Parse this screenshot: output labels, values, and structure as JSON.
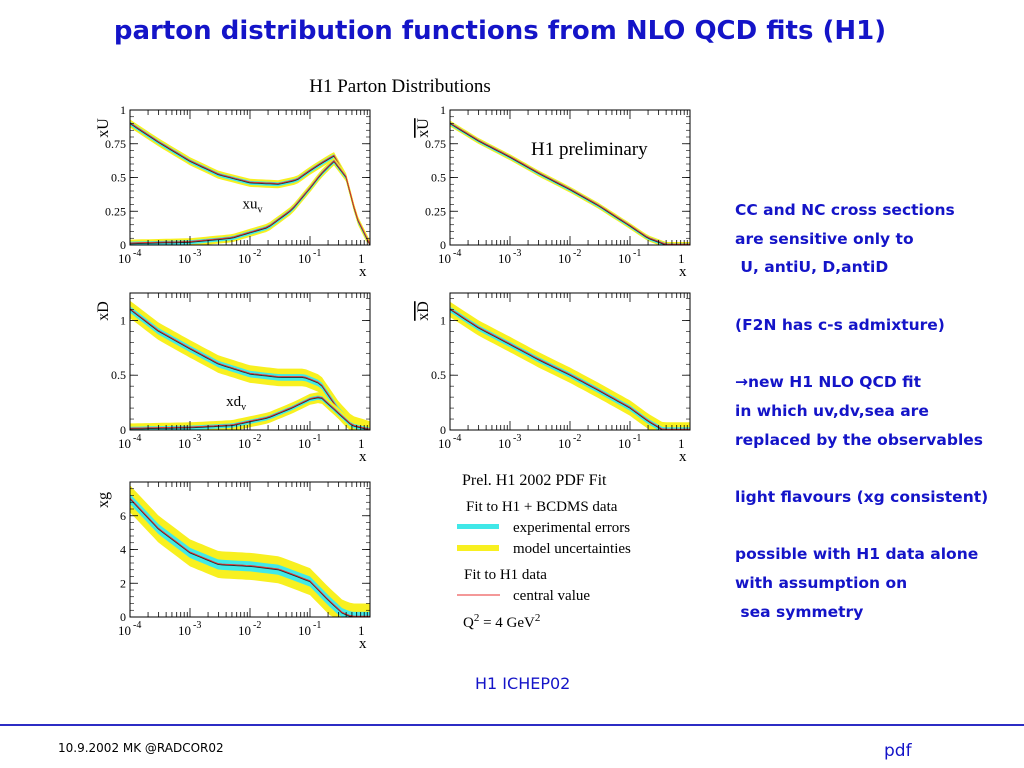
{
  "slide": {
    "title": "parton distribution functions from NLO QCD fits (H1)",
    "caption": "H1 ICHEP02",
    "footer_left": "10.9.2002 MK @RADCOR02",
    "footer_right": "pdf",
    "accent_color": "#1414c8"
  },
  "notes": [
    "CC and NC cross sections",
    "are sensitive only to",
    " U, antiU, D,antiD",
    "",
    "(F2N has c-s admixture)",
    "",
    "→new H1 NLO QCD fit",
    "in which uv,dv,sea are",
    "replaced by the observables",
    "",
    "light flavours (xg consistent)",
    "",
    "possible with H1 data alone",
    "with assumption on",
    " sea symmetry"
  ],
  "figure": {
    "title": "H1 Parton Distributions",
    "preliminary": "H1 preliminary",
    "colors": {
      "experimental": "#40e8e8",
      "model": "#f8f020",
      "central": "#e83030"
    },
    "legend": {
      "header": "Prel. H1 2002 PDF Fit",
      "fit1": "Fit to H1 + BCDMS data",
      "exp": "experimental errors",
      "model": "model uncertainties",
      "fit2": "Fit to H1 data",
      "central": "central value",
      "q2_a": "Q",
      "q2_sup": "2",
      "q2_b": " = 4 GeV",
      "q2_sup2": "2"
    }
  },
  "chart_data": [
    {
      "type": "area",
      "panel": "xU",
      "ylabel": "xU",
      "xlabel": "x",
      "xscale": "log",
      "xlim": [
        0.0001,
        1
      ],
      "ylim": [
        0,
        1
      ],
      "yticks": [
        "0",
        "0.25",
        "0.5",
        "0.75",
        "1"
      ],
      "xticks": [
        {
          "base": "10",
          "exp": "-4"
        },
        {
          "base": "10",
          "exp": "-3"
        },
        {
          "base": "10",
          "exp": "-2"
        },
        {
          "base": "10",
          "exp": "-1"
        },
        {
          "base": "1",
          "exp": ""
        }
      ],
      "curves": [
        {
          "label": "",
          "x": [
            0.0001,
            0.0003,
            0.001,
            0.003,
            0.01,
            0.03,
            0.06,
            0.1,
            0.15,
            0.25,
            0.4,
            0.6,
            1
          ],
          "y": [
            0.9,
            0.76,
            0.62,
            0.52,
            0.46,
            0.45,
            0.48,
            0.55,
            0.6,
            0.66,
            0.5,
            0.2,
            0.0
          ],
          "exp_err": 0.015,
          "model_err": 0.03
        },
        {
          "label": "xu_v",
          "label_main": "xu",
          "label_sub": "v",
          "label_at": [
            0.0075,
            0.27
          ],
          "x": [
            0.0001,
            0.001,
            0.005,
            0.02,
            0.05,
            0.1,
            0.15,
            0.25,
            0.4,
            0.6,
            1
          ],
          "y": [
            0.01,
            0.02,
            0.05,
            0.13,
            0.26,
            0.42,
            0.52,
            0.62,
            0.5,
            0.2,
            0.0
          ],
          "exp_err": 0.015,
          "model_err": 0.03
        }
      ]
    },
    {
      "type": "area",
      "panel": "xUbar",
      "ylabel": "xU",
      "ylabel_overline": true,
      "xlabel": "x",
      "xscale": "log",
      "xlim": [
        0.0001,
        1
      ],
      "ylim": [
        0,
        1
      ],
      "yticks": [
        "0",
        "0.25",
        "0.5",
        "0.75",
        "1"
      ],
      "xticks": [
        {
          "base": "10",
          "exp": "-4"
        },
        {
          "base": "10",
          "exp": "-3"
        },
        {
          "base": "10",
          "exp": "-2"
        },
        {
          "base": "10",
          "exp": "-1"
        },
        {
          "base": "1",
          "exp": ""
        }
      ],
      "curves": [
        {
          "label": "",
          "x": [
            0.0001,
            0.0003,
            0.001,
            0.003,
            0.01,
            0.03,
            0.1,
            0.2,
            0.4,
            1
          ],
          "y": [
            0.9,
            0.77,
            0.65,
            0.53,
            0.41,
            0.29,
            0.14,
            0.05,
            0.0,
            0.0
          ],
          "exp_err": 0.012,
          "model_err": 0.022
        }
      ]
    },
    {
      "type": "area",
      "panel": "xD",
      "ylabel": "xD",
      "xlabel": "x",
      "xscale": "log",
      "xlim": [
        0.0001,
        1
      ],
      "ylim": [
        0,
        1.25
      ],
      "yticks": [
        "0",
        "0.5",
        "1"
      ],
      "ytick_values": [
        0,
        0.5,
        1
      ],
      "xticks": [
        {
          "base": "10",
          "exp": "-4"
        },
        {
          "base": "10",
          "exp": "-3"
        },
        {
          "base": "10",
          "exp": "-2"
        },
        {
          "base": "10",
          "exp": "-1"
        },
        {
          "base": "1",
          "exp": ""
        }
      ],
      "curves": [
        {
          "label": "",
          "x": [
            0.0001,
            0.0003,
            0.001,
            0.003,
            0.01,
            0.03,
            0.08,
            0.15,
            0.3,
            0.5,
            1
          ],
          "y": [
            1.1,
            0.9,
            0.74,
            0.6,
            0.51,
            0.48,
            0.48,
            0.42,
            0.18,
            0.05,
            0.0
          ],
          "exp_err": 0.03,
          "model_err": 0.08
        },
        {
          "label": "xd_v",
          "label_main": "xd",
          "label_sub": "v",
          "label_at": [
            0.004,
            0.22
          ],
          "x": [
            0.0001,
            0.001,
            0.005,
            0.02,
            0.05,
            0.1,
            0.15,
            0.3,
            0.5,
            1
          ],
          "y": [
            0.01,
            0.02,
            0.04,
            0.11,
            0.2,
            0.28,
            0.3,
            0.15,
            0.04,
            0.0
          ],
          "exp_err": 0.02,
          "model_err": 0.05
        }
      ]
    },
    {
      "type": "area",
      "panel": "xDbar",
      "ylabel": "xD",
      "ylabel_overline": true,
      "xlabel": "x",
      "xscale": "log",
      "xlim": [
        0.0001,
        1
      ],
      "ylim": [
        0,
        1.25
      ],
      "yticks": [
        "0",
        "0.5",
        "1"
      ],
      "ytick_values": [
        0,
        0.5,
        1
      ],
      "xticks": [
        {
          "base": "10",
          "exp": "-4"
        },
        {
          "base": "10",
          "exp": "-3"
        },
        {
          "base": "10",
          "exp": "-2"
        },
        {
          "base": "10",
          "exp": "-1"
        },
        {
          "base": "1",
          "exp": ""
        }
      ],
      "curves": [
        {
          "label": "",
          "x": [
            0.0001,
            0.0003,
            0.001,
            0.003,
            0.01,
            0.03,
            0.1,
            0.2,
            0.35,
            1
          ],
          "y": [
            1.1,
            0.93,
            0.78,
            0.64,
            0.5,
            0.36,
            0.2,
            0.08,
            0.0,
            0.0
          ],
          "exp_err": 0.025,
          "model_err": 0.07
        }
      ]
    },
    {
      "type": "area",
      "panel": "xg",
      "ylabel": "xg",
      "xlabel": "x",
      "xscale": "log",
      "xlim": [
        0.0001,
        1
      ],
      "ylim": [
        0,
        8
      ],
      "yticks": [
        "0",
        "2",
        "4",
        "6"
      ],
      "ytick_values": [
        0,
        2,
        4,
        6
      ],
      "xticks": [
        {
          "base": "10",
          "exp": "-4"
        },
        {
          "base": "10",
          "exp": "-3"
        },
        {
          "base": "10",
          "exp": "-2"
        },
        {
          "base": "10",
          "exp": "-1"
        },
        {
          "base": "1",
          "exp": ""
        }
      ],
      "curves": [
        {
          "label": "",
          "x": [
            0.0001,
            0.0003,
            0.001,
            0.003,
            0.01,
            0.03,
            0.1,
            0.2,
            0.35,
            0.5,
            1
          ],
          "y": [
            7.0,
            5.2,
            3.8,
            3.1,
            3.0,
            2.8,
            2.1,
            1.0,
            0.2,
            0.0,
            0.0
          ],
          "exp_err": 0.3,
          "model_err": 0.8
        }
      ]
    }
  ]
}
